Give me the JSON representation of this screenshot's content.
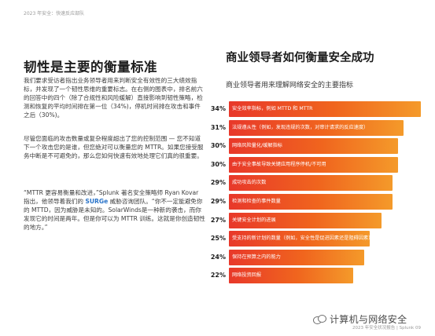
{
  "header": {
    "label": "2023 年安全：快速反应部队"
  },
  "left": {
    "title": "韧性是主要的衡量标准",
    "para1": "我们要求受访者指出业务领导者用来判断安全有效性的三大绩效指标，并发现了一个韧性思维的重要标志。在右侧的图表中，排名前六的回答中的四个（除了合规性和风险缓解）直接影响到韧性策略，检测和恢复的平均时间排在第一位（34%)，停机时间排在攻击和事件之后（30%)。",
    "para2": "尽管您面临的攻击数量或复杂程度超出了您的控制范围 — 您不知道下一个攻击您的是谁，但您绝对可以衡量您的 MTTR。如果您接受服务中断是不可避免的，那么您如何快速有效地处理它们真的很重要。",
    "quote_part1": "“MTTR 更容易衡量和改进，”Splunk 著名安全策略师 Ryan Kovar 指出，他领导着我们的 ",
    "quote_brand": "SURGe",
    "quote_part2": " 威胁咨询团队。“你不一定能避免你的 MTTD，因为威胁是未知的。SolarWinds是一种新的袭击，而你发现它的时间是两年。但是你可以为 MTTR 训练。这就是你创造韧性的地方。”"
  },
  "right": {
    "title": "商业领导者如何衡量安全成功",
    "subtitle": "商业领导者用来理解网络安全的主要指标"
  },
  "chart_data": {
    "type": "bar",
    "orientation": "horizontal",
    "title": "商业领导者如何衡量安全成功",
    "subtitle": "商业领导者用来理解网络安全的主要指标",
    "unit": "%",
    "categories": [
      "安全效率指标，例如 MTTD 和 MTTR",
      "法规遵从性（例如，发现违规的次数，对审计请求的反应速度）",
      "网络风险量化/缓解指标",
      "由于安全事故导致关键应用程序停机/不可用",
      "成功攻击的次数",
      "检测和检查的事件数量",
      "关键安全计划的进展",
      "受支持的新计划的数量（例如，安全性是促进因素还是阻碍因素）",
      "保持在预算之内的能力",
      "网络投资回报"
    ],
    "values": [
      34,
      31,
      30,
      30,
      29,
      29,
      27,
      25,
      24,
      22
    ],
    "labels": [
      "34%",
      "31%",
      "30%",
      "30%",
      "29%",
      "29%",
      "27%",
      "25%",
      "24%",
      "22%"
    ],
    "xlim": [
      0,
      34
    ],
    "gradient_colors": [
      "#e8382a",
      "#f0651e",
      "#f49a2a"
    ]
  },
  "footer": {
    "brand_name": "计算机与网络安全",
    "page_note": "2023 年安全状况报告 | Splunk  09"
  }
}
